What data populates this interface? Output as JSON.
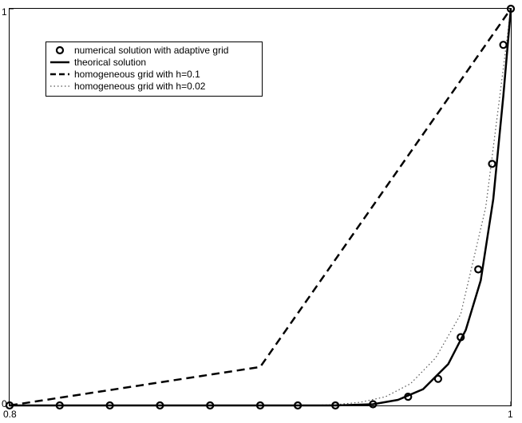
{
  "chart_data": {
    "type": "line",
    "title": "",
    "xlabel": "",
    "ylabel": "",
    "xlim": [
      0.8,
      1.0
    ],
    "ylim": [
      0,
      1
    ],
    "grid": false,
    "legend_position": "top-left",
    "x_ticks": [
      {
        "value": 0.8,
        "label": "0.8"
      },
      {
        "value": 1.0,
        "label": "1"
      }
    ],
    "y_ticks": [
      {
        "value": 0,
        "label": "0"
      },
      {
        "value": 1,
        "label": "1"
      }
    ],
    "series": [
      {
        "name": "numerical solution with adaptive grid",
        "style": "markers",
        "marker": "circle",
        "color": "#000000",
        "x": [
          0.8,
          0.82,
          0.84,
          0.86,
          0.88,
          0.9,
          0.915,
          0.93,
          0.945,
          0.959,
          0.971,
          0.98,
          0.987,
          0.9925,
          0.997,
          1.0
        ],
        "y": [
          0.0,
          0.0,
          0.0,
          0.0,
          0.0,
          0.0,
          0.0,
          0.0,
          0.003,
          0.022,
          0.067,
          0.172,
          0.343,
          0.609,
          0.909,
          1.0
        ]
      },
      {
        "name": "theorical solution",
        "style": "solid",
        "color": "#000000",
        "x": [
          0.8,
          0.9,
          0.93,
          0.945,
          0.955,
          0.965,
          0.975,
          0.982,
          0.988,
          0.993,
          0.997,
          1.0
        ],
        "y": [
          0.0,
          0.0,
          0.0,
          0.003,
          0.014,
          0.041,
          0.104,
          0.19,
          0.315,
          0.52,
          0.78,
          1.0
        ]
      },
      {
        "name": "homogeneous grid with h=0.1",
        "style": "dashed",
        "color": "#000000",
        "x": [
          0.8,
          0.9,
          1.0
        ],
        "y": [
          0.0,
          0.097,
          1.0
        ]
      },
      {
        "name": "homogeneous grid with h=0.02",
        "style": "dotted",
        "color": "#555555",
        "x": [
          0.8,
          0.92,
          0.93,
          0.94,
          0.95,
          0.96,
          0.97,
          0.98,
          0.99,
          1.0
        ],
        "y": [
          0.0,
          0.0,
          0.002,
          0.008,
          0.022,
          0.055,
          0.12,
          0.23,
          0.5,
          1.0
        ]
      }
    ]
  }
}
